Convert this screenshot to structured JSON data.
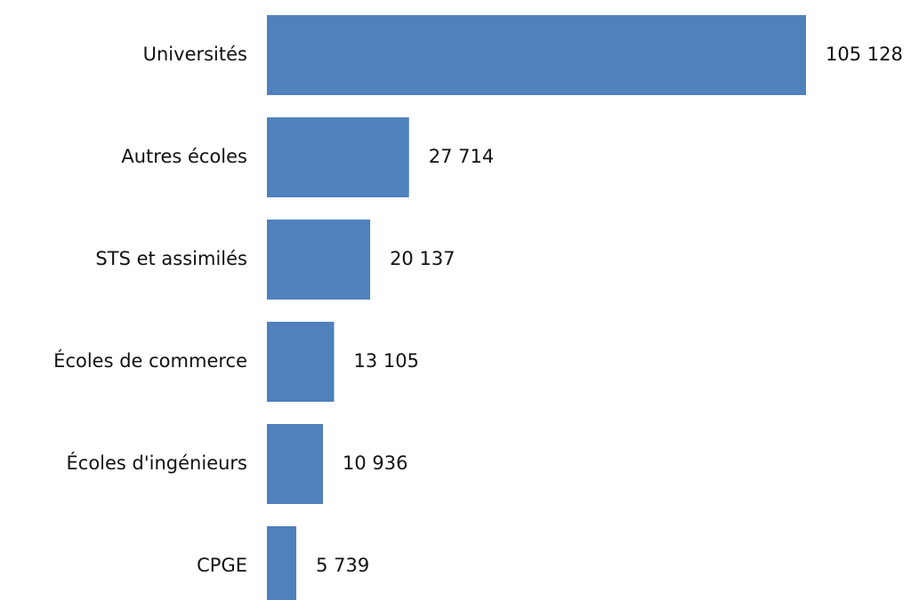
{
  "chart_data": {
    "type": "bar",
    "orientation": "horizontal",
    "categories": [
      "Universités",
      "Autres écoles",
      "STS et assimilés",
      "Écoles de commerce",
      "Écoles d'ingénieurs",
      "CPGE"
    ],
    "values": [
      105128,
      27714,
      20137,
      13105,
      10936,
      5739
    ],
    "value_labels": [
      "105 128",
      "27 714",
      "20 137",
      "13 105",
      "10 936",
      "5 739"
    ],
    "color": "#4f81bd"
  }
}
